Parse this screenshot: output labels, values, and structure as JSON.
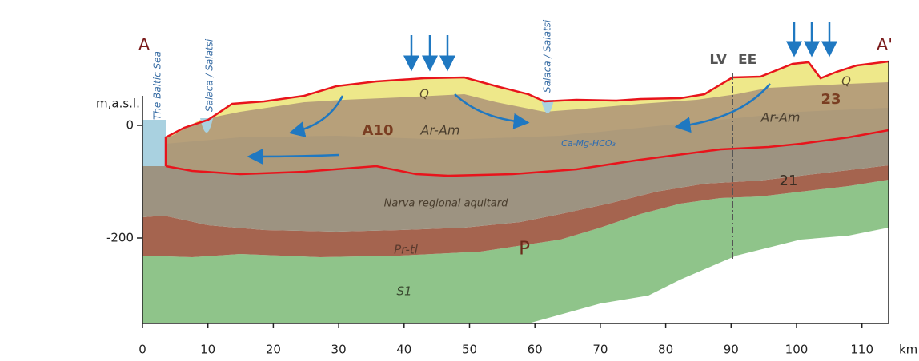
{
  "section": {
    "end_left": "A",
    "end_right": "A'",
    "y_label": "m,a.s.l.",
    "x_unit": "km",
    "xticks": [
      0,
      10,
      20,
      30,
      40,
      50,
      60,
      70,
      80,
      90,
      100,
      110
    ],
    "yticks": [
      0,
      -200
    ],
    "sea": "The Baltic Sea",
    "rivers": [
      "Salaca / Salatsi",
      "Salaca / Salatsi"
    ],
    "border": [
      "LV",
      "EE"
    ],
    "labels": [
      "Q",
      "Q",
      "A10",
      "Ar-Am",
      "Ar-Am",
      "Ca-Mg-HCO₃",
      "23",
      "21",
      "Narva regional aquitard",
      "Pr-tl",
      "P",
      "S1"
    ]
  }
}
